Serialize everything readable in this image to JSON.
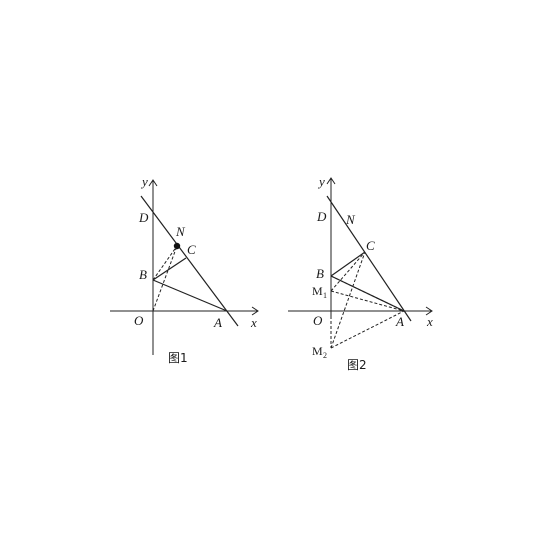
{
  "figure1": {
    "caption": "图1",
    "labels": {
      "y": "y",
      "x": "x",
      "O": "O",
      "A": "A",
      "B": "B",
      "C": "C",
      "D": "D",
      "N": "N"
    }
  },
  "figure2": {
    "caption": "图2",
    "labels": {
      "y": "y",
      "x": "x",
      "O": "O",
      "A": "A",
      "B": "B",
      "C": "C",
      "D": "D",
      "N": "N",
      "M1": "M",
      "M1_sub": "1",
      "M2": "M",
      "M2_sub": "2"
    }
  }
}
